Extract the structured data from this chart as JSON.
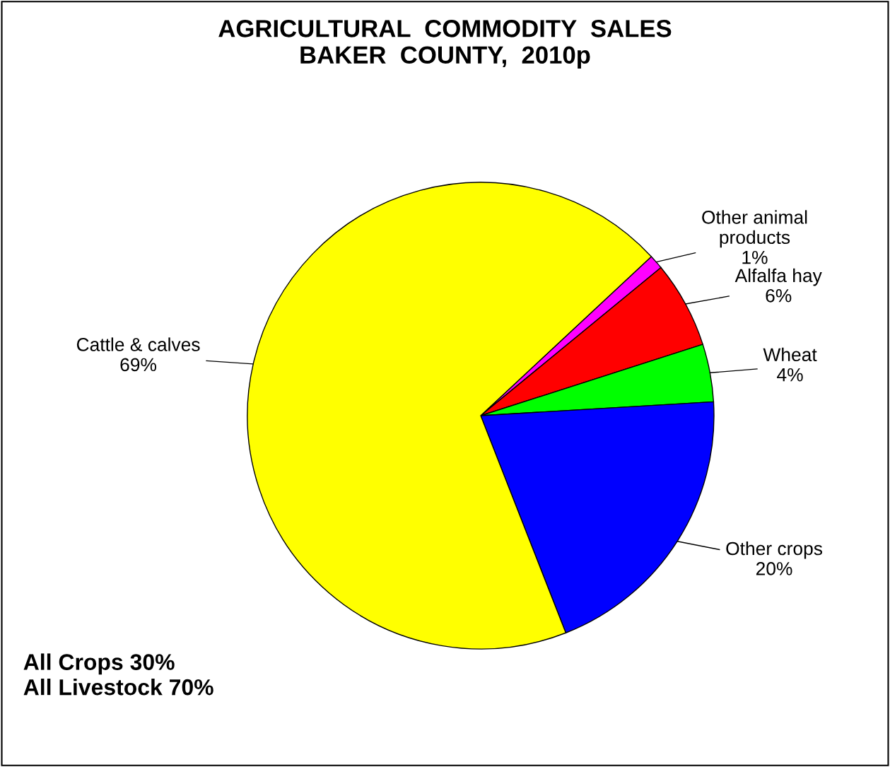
{
  "chart_data": {
    "type": "pie",
    "title": "AGRICULTURAL  COMMODITY  SALES\nBAKER  COUNTY,  2010p",
    "categories": [
      "Other animal\nproducts",
      "Alfalfa hay",
      "Wheat",
      "Other crops",
      "Cattle & calves"
    ],
    "values": [
      1,
      6,
      4,
      20,
      69
    ],
    "colors": [
      "#ff00ff",
      "#ff0000",
      "#00ff00",
      "#0000ff",
      "#ffff00"
    ],
    "value_labels": [
      "1%",
      "6%",
      "4%",
      "20%",
      "69%"
    ],
    "annotations": [
      "All Crops 30%\nAll Livestock 70%"
    ]
  }
}
